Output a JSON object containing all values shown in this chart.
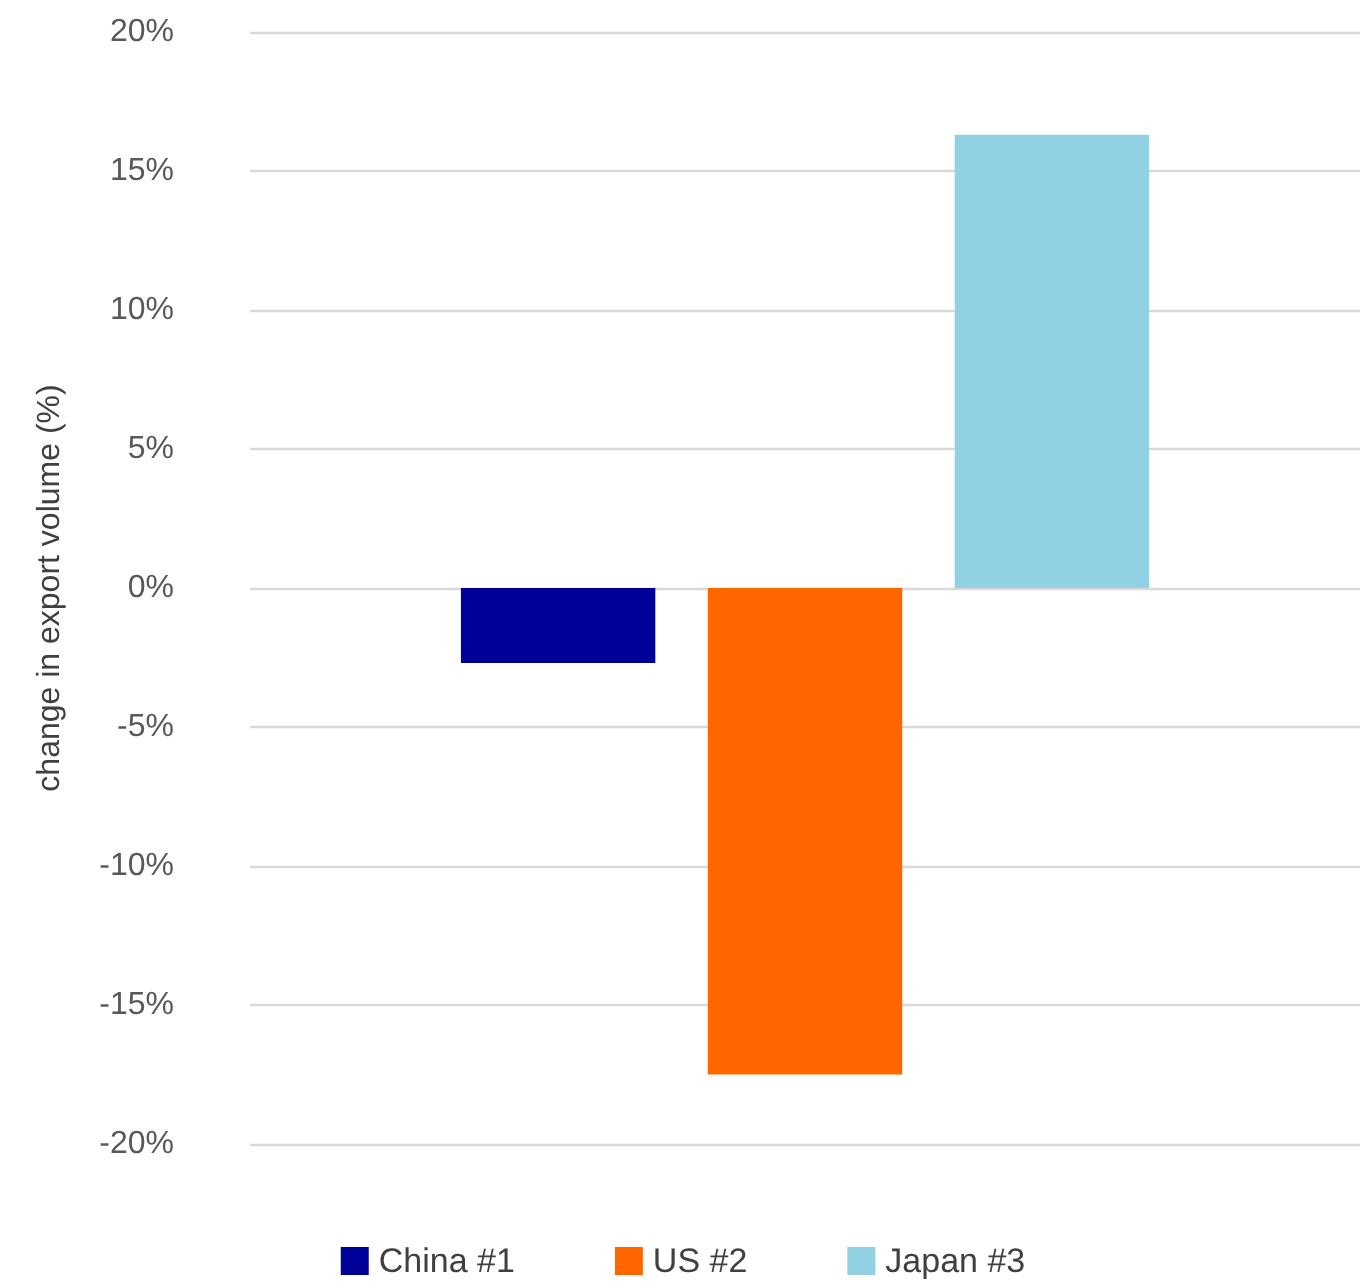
{
  "chart_data": {
    "type": "bar",
    "ylabel": "change in export volume (%)",
    "categories": [
      null
    ],
    "series": [
      {
        "name": "China #1",
        "color": "#000099",
        "values": [
          -2.7
        ]
      },
      {
        "name": "US #2",
        "color": "#ff6600",
        "values": [
          -17.5
        ]
      },
      {
        "name": "Japan #3",
        "color": "#92d1e3",
        "values": [
          16.3
        ]
      }
    ],
    "ylim": [
      -20,
      20
    ],
    "yticks": [
      {
        "value": -20,
        "label": "-20%"
      },
      {
        "value": -15,
        "label": "-15%"
      },
      {
        "value": -10,
        "label": "-10%"
      },
      {
        "value": -5,
        "label": "-5%"
      },
      {
        "value": 0,
        "label": "0%"
      },
      {
        "value": 5,
        "label": "5%"
      },
      {
        "value": 10,
        "label": "10%"
      },
      {
        "value": 15,
        "label": "15%"
      },
      {
        "value": 20,
        "label": "20%"
      }
    ],
    "grid": "y",
    "legend": "bottom",
    "tick_labels": "y"
  }
}
